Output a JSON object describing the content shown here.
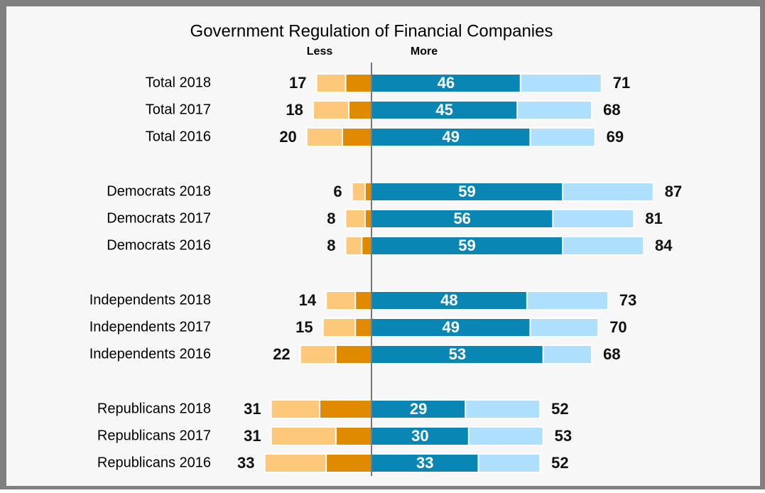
{
  "chart_data": {
    "type": "diverging_bar",
    "title": "Government Regulation of Financial Companies",
    "left_label": "Less",
    "right_label": "More",
    "categories": [
      "Total 2018",
      "Total 2017",
      "Total 2016",
      "Democrats 2018",
      "Democrats 2017",
      "Democrats 2016",
      "Independents 2018",
      "Independents 2017",
      "Independents 2016",
      "Republicans 2018",
      "Republicans 2017",
      "Republicans 2016"
    ],
    "less_total": {
      "color": "#fec87a",
      "values": [
        17,
        18,
        20,
        6,
        8,
        8,
        14,
        15,
        22,
        31,
        31,
        33
      ]
    },
    "less_strong": {
      "color": "#e08a00",
      "values": [
        8,
        7,
        9,
        2,
        2,
        3,
        5,
        5,
        11,
        16,
        11,
        14
      ]
    },
    "more_total": {
      "color": "#aedffc",
      "values": [
        71,
        68,
        69,
        87,
        81,
        84,
        73,
        70,
        68,
        52,
        53,
        52
      ]
    },
    "more_strong": {
      "color": "#0a86b4",
      "values": [
        46,
        45,
        49,
        59,
        56,
        59,
        48,
        49,
        53,
        29,
        30,
        33
      ]
    }
  }
}
